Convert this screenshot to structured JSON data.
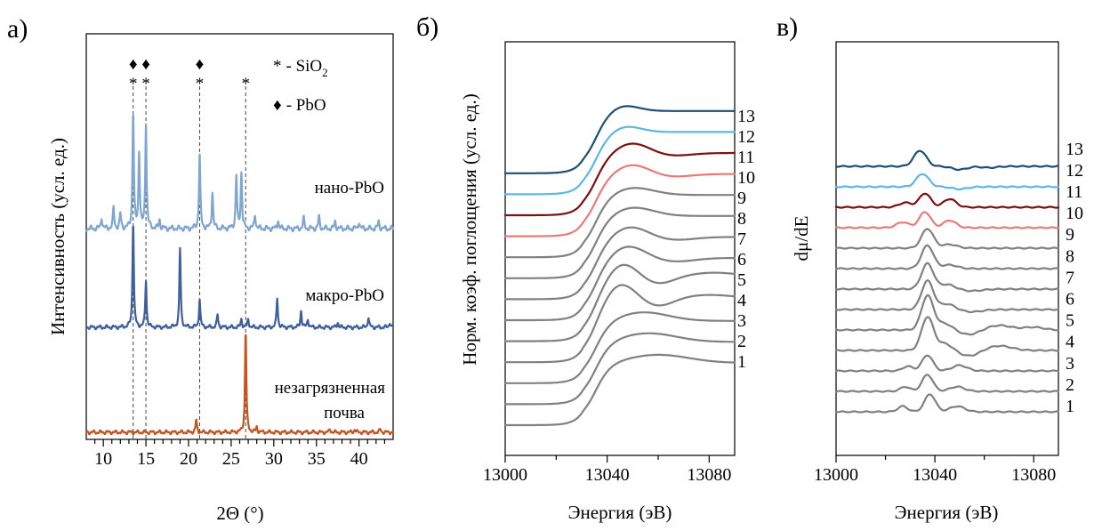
{
  "colors": {
    "nano": "#7ea6d0",
    "macro": "#3e5f9c",
    "soil": "#c4551f",
    "gray": "#808080",
    "pink": "#e87a78",
    "darkred": "#7c0f0f",
    "lightblue": "#5bb8e6",
    "darkteal": "#1d4f72",
    "refline": "#444444"
  },
  "chart_data": [
    {
      "panel": "а)",
      "type": "line",
      "xlabel": "2Θ (°)",
      "ylabel": "Интенсивность (усл. ед.)",
      "xlim": [
        8,
        44
      ],
      "xticks": [
        "10",
        "15",
        "20",
        "25",
        "30",
        "35",
        "40"
      ],
      "xtick_values": [
        10,
        15,
        20,
        25,
        30,
        35,
        40
      ],
      "yticks_shown": false,
      "legend": [
        {
          "marker": "*",
          "text": "- SiO",
          "sub": "2"
        },
        {
          "marker": "♦",
          "text": "- PbO"
        }
      ],
      "reference_lines": [
        {
          "x": 13.5,
          "markers": [
            "♦",
            "*"
          ]
        },
        {
          "x": 15.0,
          "markers": [
            "♦",
            "*"
          ]
        },
        {
          "x": 21.3,
          "markers": [
            "♦",
            "*"
          ]
        },
        {
          "x": 26.7,
          "markers": [
            "*"
          ]
        }
      ],
      "series": [
        {
          "name": "незагрязненная почва",
          "color_key": "soil",
          "baseline": 0.0,
          "peaks": [
            [
              20.9,
              0.12
            ],
            [
              26.7,
              1.0
            ],
            [
              28.0,
              0.05
            ],
            [
              36.6,
              0.03
            ],
            [
              39.5,
              0.03
            ],
            [
              42.5,
              0.03
            ]
          ]
        },
        {
          "name": "макро-PbO",
          "color_key": "macro",
          "baseline": 1.2,
          "peaks": [
            [
              13.5,
              1.02
            ],
            [
              15.0,
              0.45
            ],
            [
              19.0,
              0.75
            ],
            [
              21.3,
              0.28
            ],
            [
              23.4,
              0.12
            ],
            [
              26.2,
              0.08
            ],
            [
              27.0,
              0.08
            ],
            [
              30.4,
              0.28
            ],
            [
              33.2,
              0.16
            ],
            [
              34.0,
              0.08
            ],
            [
              37.5,
              0.05
            ],
            [
              41.1,
              0.1
            ],
            [
              43.6,
              0.05
            ]
          ]
        },
        {
          "name": "нано-PbO",
          "color_key": "nano",
          "baseline": 2.28,
          "peaks": [
            [
              9.8,
              0.08
            ],
            [
              11.2,
              0.14
            ],
            [
              12.0,
              0.1
            ],
            [
              13.5,
              0.8
            ],
            [
              14.2,
              0.52
            ],
            [
              15.0,
              0.72
            ],
            [
              16.6,
              0.06
            ],
            [
              21.3,
              0.52
            ],
            [
              22.8,
              0.25
            ],
            [
              25.6,
              0.36
            ],
            [
              26.2,
              0.38
            ],
            [
              27.8,
              0.1
            ],
            [
              30.5,
              0.06
            ],
            [
              33.5,
              0.07
            ],
            [
              35.3,
              0.08
            ],
            [
              37.2,
              0.05
            ],
            [
              40.0,
              0.05
            ],
            [
              42.3,
              0.05
            ]
          ]
        }
      ]
    },
    {
      "panel": "б)",
      "type": "line",
      "xlabel": "Энергия (эВ)",
      "ylabel": "Норм. коэф. поглощения (усл. ед.)",
      "xlim": [
        13000,
        13090
      ],
      "xticks": [
        "13000",
        "13040",
        "13080"
      ],
      "xtick_values": [
        13000,
        13040,
        13080
      ],
      "yticks_shown": false,
      "edge_energy": 13035,
      "offset_step": 0.2,
      "series": [
        {
          "name": "1",
          "color_key": "gray",
          "offset": 0.0,
          "features": [
            [
              13060,
              0.13,
              12
            ]
          ]
        },
        {
          "name": "2",
          "color_key": "gray",
          "offset": 0.2,
          "features": [
            [
              13056,
              0.14,
              11
            ]
          ]
        },
        {
          "name": "3",
          "color_key": "gray",
          "offset": 0.4,
          "features": [
            [
              13054,
              0.14,
              10
            ]
          ]
        },
        {
          "name": "4",
          "color_key": "gray",
          "offset": 0.6,
          "features": [
            [
              13045,
              0.28,
              6
            ],
            [
              13060,
              -0.12,
              6
            ],
            [
              13080,
              0.08,
              12
            ]
          ]
        },
        {
          "name": "5",
          "color_key": "gray",
          "offset": 0.8,
          "features": [
            [
              13046,
              0.26,
              6
            ],
            [
              13060,
              -0.1,
              6
            ],
            [
              13082,
              0.1,
              12
            ]
          ]
        },
        {
          "name": "6",
          "color_key": "gray",
          "offset": 1.0,
          "features": [
            [
              13048,
              0.2,
              7
            ],
            [
              13066,
              -0.06,
              8
            ]
          ]
        },
        {
          "name": "7",
          "color_key": "gray",
          "offset": 1.2,
          "features": [
            [
              13049,
              0.17,
              7
            ],
            [
              13066,
              -0.05,
              8
            ]
          ]
        },
        {
          "name": "8",
          "color_key": "gray",
          "offset": 1.4,
          "features": [
            [
              13050,
              0.14,
              8
            ]
          ]
        },
        {
          "name": "9",
          "color_key": "gray",
          "offset": 1.6,
          "features": [
            [
              13050,
              0.12,
              8
            ]
          ]
        },
        {
          "name": "10",
          "color_key": "pink",
          "offset": 1.8,
          "features": [
            [
              13050,
              0.16,
              7
            ],
            [
              13064,
              -0.05,
              8
            ]
          ]
        },
        {
          "name": "11",
          "color_key": "darkred",
          "offset": 2.0,
          "features": [
            [
              13050,
              0.17,
              7
            ],
            [
              13064,
              -0.05,
              8
            ]
          ]
        },
        {
          "name": "12",
          "color_key": "lightblue",
          "offset": 2.2,
          "features": [
            [
              13047,
              0.1,
              6
            ]
          ]
        },
        {
          "name": "13",
          "color_key": "darkteal",
          "offset": 2.4,
          "features": [
            [
              13046,
              0.1,
              6
            ]
          ]
        }
      ]
    },
    {
      "panel": "в)",
      "type": "line",
      "xlabel": "Энергия (эВ)",
      "ylabel": "dμ/dE",
      "xlim": [
        13000,
        13090
      ],
      "xticks": [
        "13000",
        "13040",
        "13080"
      ],
      "xtick_values": [
        13000,
        13040,
        13080
      ],
      "yticks_shown": false,
      "offset_step": 0.26,
      "series": [
        {
          "name": "1",
          "color_key": "gray",
          "offset": 0.0,
          "features": [
            [
              13027,
              0.12,
              2
            ],
            [
              13038,
              0.38,
              2.2
            ],
            [
              13049,
              0.12,
              3
            ]
          ]
        },
        {
          "name": "2",
          "color_key": "gray",
          "offset": 0.26,
          "features": [
            [
              13028,
              0.1,
              2
            ],
            [
              13037,
              0.36,
              2.2
            ],
            [
              13049,
              0.1,
              3
            ]
          ]
        },
        {
          "name": "3",
          "color_key": "gray",
          "offset": 0.52,
          "features": [
            [
              13029,
              0.1,
              2
            ],
            [
              13037,
              0.34,
              2.2
            ],
            [
              13050,
              0.12,
              3
            ]
          ]
        },
        {
          "name": "4",
          "color_key": "gray",
          "offset": 0.78,
          "features": [
            [
              13037,
              0.72,
              2.4
            ],
            [
              13044,
              0.15,
              3
            ],
            [
              13054,
              -0.12,
              4
            ],
            [
              13066,
              0.1,
              5
            ]
          ]
        },
        {
          "name": "5",
          "color_key": "gray",
          "offset": 1.04,
          "features": [
            [
              13037,
              0.74,
              2.4
            ],
            [
              13044,
              0.14,
              3
            ],
            [
              13054,
              -0.1,
              4
            ],
            [
              13066,
              0.1,
              5
            ],
            [
              13080,
              0.06,
              4
            ]
          ]
        },
        {
          "name": "6",
          "color_key": "gray",
          "offset": 1.3,
          "features": [
            [
              13037,
              0.62,
              2.4
            ],
            [
              13045,
              0.12,
              3
            ],
            [
              13055,
              -0.05,
              4
            ]
          ]
        },
        {
          "name": "7",
          "color_key": "gray",
          "offset": 1.56,
          "features": [
            [
              13037,
              0.55,
              2.4
            ],
            [
              13045,
              0.1,
              3
            ],
            [
              13055,
              -0.04,
              4
            ]
          ]
        },
        {
          "name": "8",
          "color_key": "gray",
          "offset": 1.82,
          "features": [
            [
              13037,
              0.5,
              2.4
            ],
            [
              13046,
              0.08,
              3
            ]
          ]
        },
        {
          "name": "9",
          "color_key": "gray",
          "offset": 2.08,
          "features": [
            [
              13037,
              0.42,
              2.4
            ],
            [
              13046,
              0.08,
              3
            ]
          ]
        },
        {
          "name": "10",
          "color_key": "pink",
          "offset": 2.34,
          "features": [
            [
              13027,
              0.12,
              2.5
            ],
            [
              13036,
              0.34,
              2.3
            ],
            [
              13046,
              0.16,
              2.5
            ]
          ]
        },
        {
          "name": "11",
          "color_key": "darkred",
          "offset": 2.6,
          "features": [
            [
              13028,
              0.1,
              2.5
            ],
            [
              13036,
              0.3,
              2.3
            ],
            [
              13046,
              0.18,
              2.5
            ]
          ]
        },
        {
          "name": "12",
          "color_key": "lightblue",
          "offset": 2.86,
          "features": [
            [
              13035,
              0.28,
              2.5
            ],
            [
              13050,
              -0.05,
              3
            ]
          ]
        },
        {
          "name": "13",
          "color_key": "darkteal",
          "offset": 3.12,
          "features": [
            [
              13034,
              0.34,
              2.5
            ],
            [
              13050,
              -0.07,
              3
            ],
            [
              13062,
              -0.03,
              3
            ]
          ]
        }
      ]
    }
  ]
}
